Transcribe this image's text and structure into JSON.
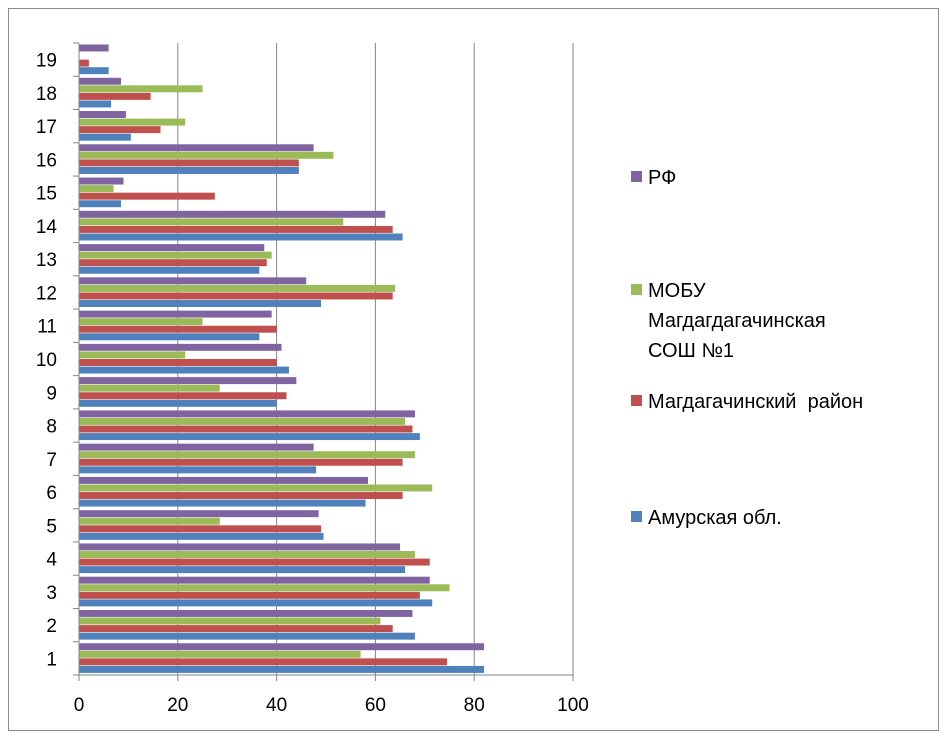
{
  "chart_data": {
    "type": "bar",
    "orientation": "horizontal",
    "categories": [
      "1",
      "2",
      "3",
      "4",
      "5",
      "6",
      "7",
      "8",
      "9",
      "10",
      "11",
      "12",
      "13",
      "14",
      "15",
      "16",
      "17",
      "18",
      "19"
    ],
    "xlim": [
      0,
      100
    ],
    "xticks": [
      "0",
      "20",
      "40",
      "60",
      "80",
      "100"
    ],
    "grid": "vertical",
    "legend_position": "right",
    "series": [
      {
        "name": "Амурская обл.",
        "color": "#4f81bd",
        "values": [
          82,
          68,
          71.5,
          66,
          49.5,
          58,
          48,
          69,
          40,
          42.5,
          36.5,
          49,
          36.5,
          65.5,
          8.5,
          44.5,
          10.5,
          6.5,
          6
        ]
      },
      {
        "name": "Магдагачинский  район",
        "color": "#c0504d",
        "values": [
          74.5,
          63.5,
          69,
          71,
          49,
          65.5,
          65.5,
          67.5,
          42,
          40,
          40,
          63.5,
          38,
          63.5,
          27.5,
          44.5,
          16.5,
          14.5,
          2
        ]
      },
      {
        "name": "МОБУ Магдагдагачинская СОШ №1",
        "color": "#9bbb59",
        "values": [
          57,
          61,
          75,
          68,
          28.5,
          71.5,
          68,
          66,
          28.5,
          21.5,
          25,
          64,
          39,
          53.5,
          7,
          51.5,
          21.5,
          25,
          0
        ]
      },
      {
        "name": "РФ",
        "color": "#8064a2",
        "values": [
          82,
          67.5,
          71,
          65,
          48.5,
          58.5,
          47.5,
          68,
          44,
          41,
          39,
          46,
          37.5,
          62,
          9,
          47.5,
          9.5,
          8.5,
          6
        ]
      }
    ]
  },
  "legend": {
    "items": [
      {
        "lines": [
          "РФ"
        ],
        "color": "#8064a2"
      },
      {
        "lines": [
          "МОБУ",
          "Магдагдагачинская",
          "СОШ №1"
        ],
        "color": "#9bbb59"
      },
      {
        "lines": [
          "Магдагачинский  район"
        ],
        "color": "#c0504d"
      },
      {
        "lines": [
          "Амурская обл."
        ],
        "color": "#4f81bd"
      }
    ]
  }
}
